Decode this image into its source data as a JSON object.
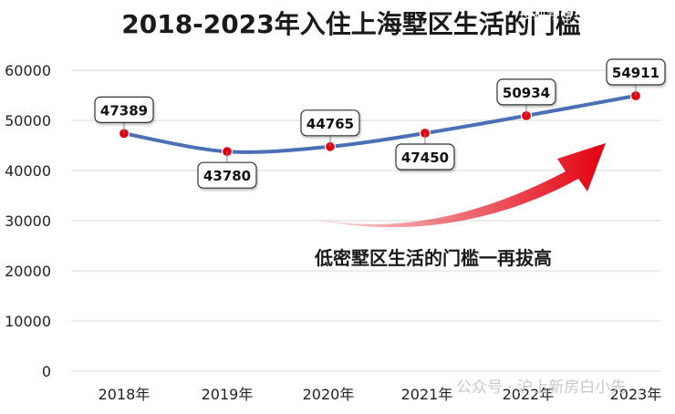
{
  "chart_data": {
    "type": "line",
    "title": "2018-2023年入住上海墅区生活的门槛",
    "categories": [
      "2018年",
      "2019年",
      "2020年",
      "2021年",
      "2022年",
      "2023年"
    ],
    "series": [
      {
        "values": [
          47389,
          43780,
          44765,
          47450,
          50934,
          54911
        ]
      }
    ],
    "data_labels": [
      "47389",
      "43780",
      "44765",
      "47450",
      "50934",
      "54911"
    ],
    "yticks": [
      "0",
      "10000",
      "20000",
      "30000",
      "40000",
      "50000",
      "60000"
    ],
    "ylim": [
      0,
      60000
    ],
    "grid": true,
    "legend": "none",
    "annotation": "低密墅区生活的门槛一再拔高",
    "colors": {
      "line": "#4a6fb5",
      "marker": "#e3000f",
      "arrow": "#e3000f",
      "grid": "#d9d9d9"
    }
  },
  "watermarks": {
    "top_right": "搜狐号@搜狐焦点孝感站",
    "bottom": "公众号 · 沪上新房白小先"
  }
}
